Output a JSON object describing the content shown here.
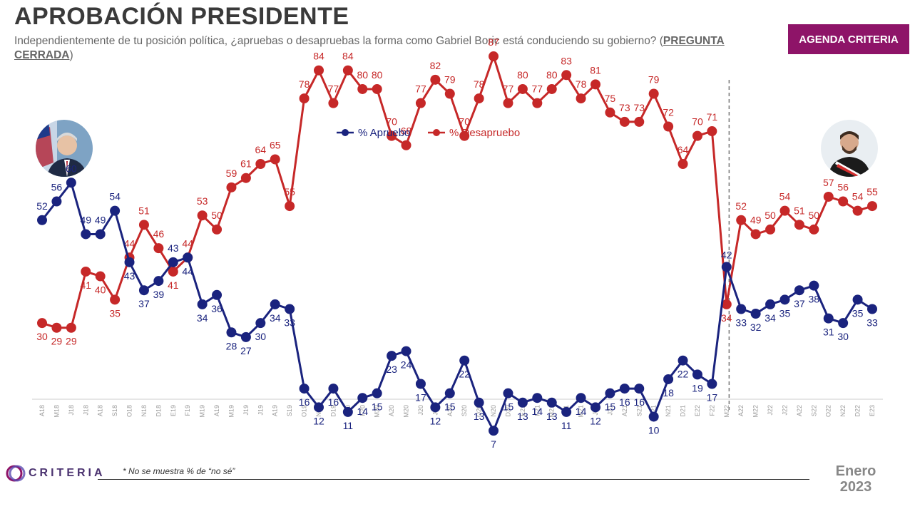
{
  "header": {
    "title": "APROBACIÓN PRESIDENTE",
    "subtitle_main": "Independientemente de tu posición política, ¿apruebas o desapruebas la forma como Gabriel Boric está conduciendo su gobierno? (",
    "subtitle_emph": "PREGUNTA CERRADA",
    "subtitle_end": ")",
    "badge": "AGENDA CRITERIA"
  },
  "footer": {
    "logo_text": "CRITERIA",
    "note": "* No se muestra % de “no sé”",
    "month": "Enero",
    "year": "2023"
  },
  "colors": {
    "approve": "#1a237e",
    "disapprove": "#c62828",
    "badge": "#8e1468",
    "logo": "#4b3370"
  },
  "images": {
    "left_avatar": "president-portrait-pinera",
    "right_avatar": "president-portrait-boric"
  },
  "chart_data": {
    "type": "line",
    "title": "",
    "xlabel": "",
    "ylabel": "",
    "ylim": [
      0,
      100
    ],
    "grid": false,
    "legend": "top-center",
    "categories": [
      "A18",
      "M18",
      "J18",
      "J18",
      "A18",
      "S18",
      "O18",
      "N18",
      "D18",
      "E19",
      "F19",
      "M19",
      "A19",
      "M19",
      "J19",
      "J19",
      "A19",
      "S19",
      "O19",
      "N19",
      "D19",
      "E20",
      "F20",
      "M20",
      "A20",
      "M20",
      "J20",
      "J20",
      "A20",
      "S20",
      "O20",
      "N20",
      "D20",
      "E21",
      "F21",
      "M21",
      "A21",
      "M21",
      "J21",
      "J21",
      "A21",
      "S21",
      "O21",
      "N21",
      "D21",
      "E22",
      "F22",
      "M22",
      "A22",
      "M22",
      "J22",
      "J22",
      "A22",
      "S22",
      "O22",
      "N22",
      "D22",
      "E23"
    ],
    "series": [
      {
        "name": "% Apruebo",
        "values": [
          52,
          56,
          60,
          49,
          49,
          54,
          43,
          37,
          39,
          43,
          44,
          34,
          36,
          28,
          27,
          30,
          34,
          33,
          16,
          12,
          16,
          11,
          14,
          15,
          23,
          24,
          17,
          12,
          15,
          22,
          13,
          7,
          15,
          13,
          14,
          13,
          11,
          14,
          12,
          15,
          16,
          16,
          10,
          18,
          22,
          19,
          17,
          42,
          33,
          32,
          34,
          35,
          37,
          38,
          31,
          30,
          35,
          33
        ]
      },
      {
        "name": "% Desapruebo",
        "values": [
          30,
          29,
          29,
          41,
          40,
          35,
          44,
          51,
          46,
          41,
          44,
          53,
          50,
          59,
          61,
          64,
          65,
          55,
          78,
          84,
          77,
          84,
          80,
          80,
          70,
          68,
          77,
          82,
          79,
          70,
          78,
          87,
          77,
          80,
          77,
          80,
          83,
          78,
          81,
          75,
          73,
          73,
          79,
          72,
          64,
          70,
          71,
          34,
          52,
          49,
          50,
          54,
          51,
          50,
          57,
          56,
          54,
          55
        ]
      }
    ],
    "divider_after_index": 46
  }
}
